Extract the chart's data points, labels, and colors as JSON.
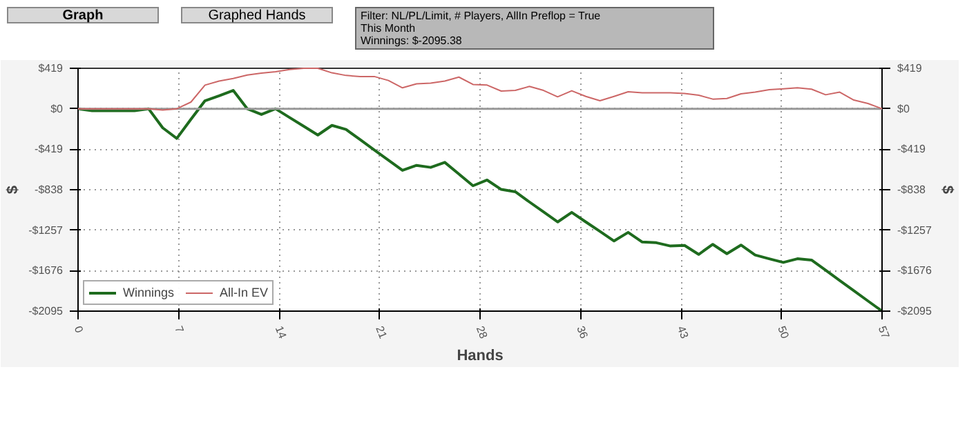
{
  "chart_data": {
    "type": "line",
    "xlabel": "Hands",
    "ylabel": "$",
    "y2label": "$",
    "annotations": [
      "Graph",
      "Graphed Hands",
      "Filter: NL/PL/Limit, # Players, AllIn Preflop = True",
      "This Month",
      "Winnings: $-2095.38"
    ],
    "x": [
      0,
      1,
      2,
      3,
      4,
      5,
      6,
      7,
      8,
      9,
      10,
      11,
      12,
      13,
      14,
      15,
      16,
      17,
      18,
      19,
      20,
      21,
      22,
      23,
      24,
      25,
      26,
      27,
      28,
      29,
      30,
      31,
      32,
      33,
      34,
      35,
      36,
      37,
      38,
      39,
      40,
      41,
      42,
      43,
      44,
      45,
      46,
      47,
      48,
      49,
      50,
      51,
      52,
      53,
      54,
      55,
      56,
      57
    ],
    "series": [
      {
        "name": "Winnings",
        "color": "#1e6b1e",
        "values": [
          0,
          -20,
          -20,
          -20,
          -20,
          0,
          -197,
          -307,
          -110,
          83,
          134,
          190,
          0,
          -59,
          0,
          -91,
          -181,
          -272,
          -172,
          -214,
          -320,
          -426,
          -532,
          -638,
          -586,
          -607,
          -555,
          -676,
          -797,
          -738,
          -835,
          -859,
          -965,
          -1068,
          -1172,
          -1073,
          -1172,
          -1270,
          -1369,
          -1280,
          -1380,
          -1387,
          -1421,
          -1415,
          -1508,
          -1404,
          -1501,
          -1411,
          -1514,
          -1553,
          -1591,
          -1553,
          -1566,
          -1672,
          -1778,
          -1884,
          -1990,
          -2095.38
        ]
      },
      {
        "name": "All-In EV",
        "color": "#cc6666",
        "values": [
          0,
          0,
          0,
          0,
          0,
          0,
          -14,
          0,
          69,
          245,
          287,
          314,
          349,
          369,
          383,
          407,
          419,
          419,
          372,
          345,
          334,
          334,
          293,
          217,
          258,
          266,
          287,
          328,
          252,
          245,
          183,
          190,
          231,
          190,
          124,
          186,
          128,
          83,
          128,
          176,
          166,
          166,
          166,
          159,
          141,
          100,
          107,
          155,
          172,
          197,
          207,
          217,
          203,
          145,
          172,
          90,
          55,
          0
        ]
      }
    ],
    "xlim": [
      0,
      57
    ],
    "xticks": [
      0,
      {
        "value": 7.125,
        "label": "7"
      },
      {
        "value": 14.25,
        "label": "14"
      },
      {
        "value": 21.375,
        "label": "21"
      },
      {
        "value": 28.5,
        "label": "28"
      },
      {
        "value": 35.625,
        "label": "36"
      },
      {
        "value": 42.75,
        "label": "43"
      },
      {
        "value": 49.875,
        "label": "50"
      },
      57
    ],
    "ylim": [
      -2095.38,
      419
    ],
    "yticks": [
      {
        "value": 419,
        "label": "$419"
      },
      {
        "value": 0,
        "label": "$0"
      },
      {
        "value": -419,
        "label": "-$419"
      },
      {
        "value": -838,
        "label": "-$838"
      },
      {
        "value": -1257,
        "label": "-$1257"
      },
      {
        "value": -1676,
        "label": "-$1676"
      },
      {
        "value": -2095,
        "label": "-$2095"
      }
    ],
    "y2lim": [
      -2095.38,
      419
    ],
    "y2ticks": [
      {
        "value": 419,
        "label": "$419"
      },
      {
        "value": 0,
        "label": "$0"
      },
      {
        "value": -419,
        "label": "-$419"
      },
      {
        "value": -838,
        "label": "-$838"
      },
      {
        "value": -1257,
        "label": "-$1257"
      },
      {
        "value": -1676,
        "label": "-$1676"
      },
      {
        "value": -2095,
        "label": "-$2095"
      }
    ],
    "ref_lines": [
      {
        "axis": "y",
        "value": 0,
        "color": "#999999",
        "line_style": "solid"
      }
    ],
    "grid": true,
    "legend": "bottom left",
    "marker": "none",
    "line_style": "solid"
  }
}
